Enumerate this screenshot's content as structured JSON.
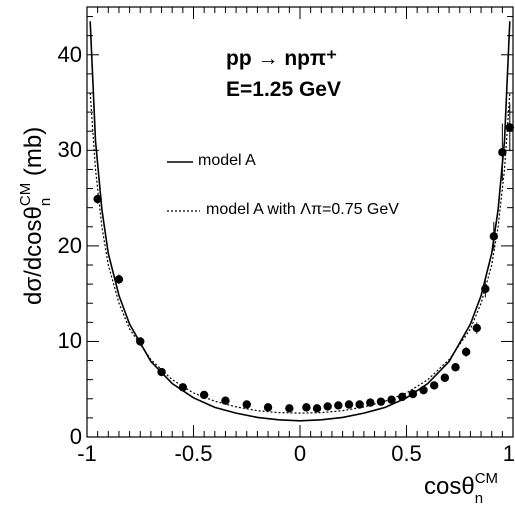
{
  "chart_data": {
    "type": "scatter",
    "annotations": {
      "reaction": "pp → npπ⁺",
      "energy": "E=1.25 GeV"
    },
    "xlabel": "cosθn^CM",
    "ylabel": "dσ/dcosθn^CM (mb)",
    "xlim": [
      -1,
      1
    ],
    "ylim": [
      0,
      45
    ],
    "x_ticks": [
      "-1",
      "-0.5",
      "0",
      "0.5",
      "1"
    ],
    "y_ticks": [
      "0",
      "10",
      "20",
      "30",
      "40"
    ],
    "grid": false,
    "legend": {
      "placement": "center-left",
      "entries": [
        {
          "label": "model A",
          "line": "solid"
        },
        {
          "label": "model A with Λπ=0.75 GeV",
          "line": "dotted"
        }
      ]
    },
    "series": [
      {
        "kind": "data-points",
        "x": [
          -0.95,
          -0.85,
          -0.75,
          -0.65,
          -0.55,
          -0.45,
          -0.35,
          -0.25,
          -0.15,
          -0.05,
          0.03,
          0.08,
          0.13,
          0.18,
          0.23,
          0.28,
          0.33,
          0.38,
          0.43,
          0.48,
          0.53,
          0.58,
          0.63,
          0.68,
          0.73,
          0.78,
          0.83,
          0.87,
          0.91,
          0.95
        ],
        "y": [
          24.9,
          16.5,
          10.0,
          6.8,
          5.2,
          4.4,
          3.8,
          3.4,
          3.1,
          3.0,
          3.1,
          3.0,
          3.2,
          3.3,
          3.4,
          3.4,
          3.6,
          3.7,
          3.9,
          4.2,
          4.5,
          4.9,
          5.4,
          6.2,
          7.3,
          8.9,
          11.4,
          15.5,
          21.0,
          29.8
        ],
        "yerr": [
          0.5,
          0.5,
          0.4,
          0.3,
          0.2,
          0.2,
          0.2,
          0.2,
          0.2,
          0.2,
          0.2,
          0.2,
          0.2,
          0.2,
          0.2,
          0.2,
          0.2,
          0.2,
          0.2,
          0.2,
          0.2,
          0.2,
          0.3,
          0.3,
          0.4,
          0.5,
          0.6,
          0.9,
          1.5,
          3.0
        ],
        "extra_point": {
          "x": 0.985,
          "y": 32.4,
          "yerr": 2.5
        }
      },
      {
        "name": "model A",
        "style": "solid",
        "x": [
          -0.985,
          -0.96,
          -0.93,
          -0.9,
          -0.85,
          -0.8,
          -0.7,
          -0.6,
          -0.5,
          -0.4,
          -0.3,
          -0.2,
          -0.1,
          0.0,
          0.1,
          0.2,
          0.3,
          0.4,
          0.5,
          0.6,
          0.7,
          0.8,
          0.85,
          0.9,
          0.93,
          0.96,
          0.985
        ],
        "y": [
          43.5,
          31.0,
          23.8,
          19.2,
          14.8,
          11.8,
          7.9,
          5.6,
          4.1,
          3.1,
          2.5,
          2.05,
          1.8,
          1.7,
          1.8,
          2.05,
          2.5,
          3.1,
          4.1,
          5.6,
          7.9,
          11.8,
          14.8,
          19.2,
          23.8,
          31.0,
          43.5
        ]
      },
      {
        "name": "model A with Λπ=0.75 GeV",
        "style": "dotted",
        "x": [
          -0.985,
          -0.96,
          -0.93,
          -0.9,
          -0.85,
          -0.8,
          -0.7,
          -0.6,
          -0.5,
          -0.4,
          -0.3,
          -0.2,
          -0.1,
          0.0,
          0.1,
          0.2,
          0.3,
          0.4,
          0.5,
          0.6,
          0.7,
          0.8,
          0.85,
          0.9,
          0.93,
          0.96,
          0.985
        ],
        "y": [
          36.0,
          28.0,
          22.0,
          18.0,
          14.0,
          11.3,
          8.1,
          6.0,
          4.6,
          3.75,
          3.15,
          2.75,
          2.55,
          2.5,
          2.55,
          2.75,
          3.15,
          3.75,
          4.6,
          6.0,
          8.1,
          11.3,
          14.0,
          18.0,
          22.0,
          28.0,
          36.0
        ]
      }
    ]
  }
}
